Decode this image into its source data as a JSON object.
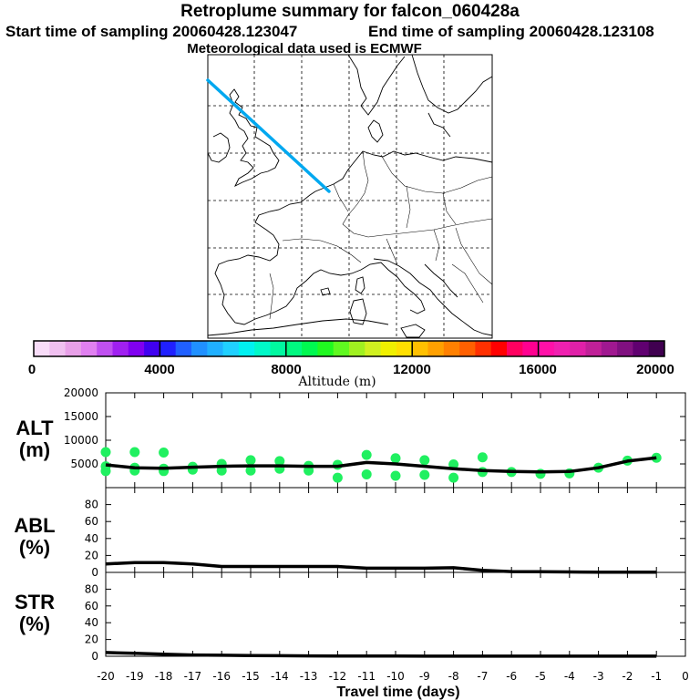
{
  "header": {
    "title": "Retroplume summary for falcon_060428a",
    "start_sampling": "Start time of sampling 20060428.123047",
    "end_sampling": "End time of sampling 20060428.123108",
    "meteo": "Meteorological data used is ECMWF"
  },
  "colorbar": {
    "label": "Altitude (m)",
    "ticks": [
      "0",
      "4000",
      "8000",
      "12000",
      "16000",
      "20000"
    ],
    "colors": [
      "#f8dcf8",
      "#f0c0f0",
      "#e8a0e8",
      "#e080f0",
      "#c050f0",
      "#a020f0",
      "#8000f0",
      "#4000f0",
      "#2020ff",
      "#2060ff",
      "#2090ff",
      "#20b0ff",
      "#20d0ff",
      "#00f0f0",
      "#00f8c8",
      "#00f8a0",
      "#00f880",
      "#00f850",
      "#20f820",
      "#60f820",
      "#a0f020",
      "#d0f020",
      "#f0f000",
      "#ffe000",
      "#ffc000",
      "#ffa000",
      "#ff8000",
      "#ff6000",
      "#ff3000",
      "#ff0000",
      "#ff0060",
      "#ff0090",
      "#ff10a8",
      "#f020b0",
      "#e020a8",
      "#c02098",
      "#a01890",
      "#801080",
      "#600070",
      "#400050"
    ]
  },
  "map": {
    "trajectory_color": "#00a8f0"
  },
  "chart_data": [
    {
      "type": "scatter",
      "panel": "ALT",
      "ylabel": "ALT\n(m)",
      "ylabel_lines": [
        "ALT",
        "(m)"
      ],
      "ylim": [
        0,
        20000
      ],
      "yticks": [
        5000,
        10000,
        15000,
        20000
      ],
      "ytick_labels": [
        "5000",
        "10000",
        "15000",
        "20000"
      ],
      "xlim": [
        -20,
        0
      ],
      "line": {
        "x": [
          -20,
          -19,
          -18,
          -17,
          -16,
          -15,
          -14,
          -13,
          -12,
          -11,
          -10,
          -9,
          -8,
          -7,
          -6,
          -5,
          -4,
          -3,
          -2,
          -1
        ],
        "y": [
          4800,
          4200,
          4100,
          4300,
          4500,
          4600,
          4600,
          4500,
          4500,
          5300,
          5000,
          4500,
          4000,
          3600,
          3400,
          3300,
          3400,
          4200,
          5600,
          6300
        ]
      },
      "points": [
        {
          "x": -20,
          "y": 4500
        },
        {
          "x": -20,
          "y": 3500
        },
        {
          "x": -20,
          "y": 7500
        },
        {
          "x": -19,
          "y": 4200
        },
        {
          "x": -19,
          "y": 3600
        },
        {
          "x": -19,
          "y": 7500
        },
        {
          "x": -18,
          "y": 4000
        },
        {
          "x": -18,
          "y": 3500
        },
        {
          "x": -18,
          "y": 7400
        },
        {
          "x": -17,
          "y": 4400
        },
        {
          "x": -17,
          "y": 3800
        },
        {
          "x": -16,
          "y": 5000
        },
        {
          "x": -16,
          "y": 3600
        },
        {
          "x": -15,
          "y": 5800
        },
        {
          "x": -15,
          "y": 3600
        },
        {
          "x": -14,
          "y": 5600
        },
        {
          "x": -14,
          "y": 4000
        },
        {
          "x": -13,
          "y": 4600
        },
        {
          "x": -13,
          "y": 3600
        },
        {
          "x": -12,
          "y": 4800
        },
        {
          "x": -12,
          "y": 2100
        },
        {
          "x": -11,
          "y": 6900
        },
        {
          "x": -11,
          "y": 2800
        },
        {
          "x": -10,
          "y": 6200
        },
        {
          "x": -10,
          "y": 2500
        },
        {
          "x": -9,
          "y": 5800
        },
        {
          "x": -9,
          "y": 2700
        },
        {
          "x": -8,
          "y": 4900
        },
        {
          "x": -8,
          "y": 2100
        },
        {
          "x": -7,
          "y": 3300
        },
        {
          "x": -7,
          "y": 6400
        },
        {
          "x": -6,
          "y": 3300
        },
        {
          "x": -5,
          "y": 2900
        },
        {
          "x": -4,
          "y": 3000
        },
        {
          "x": -3,
          "y": 4200
        },
        {
          "x": -2,
          "y": 5700
        },
        {
          "x": -1,
          "y": 6300
        }
      ]
    },
    {
      "type": "line",
      "panel": "ABL",
      "ylabel": "ABL\n(%)",
      "ylabel_lines": [
        "ABL",
        "(%)"
      ],
      "ylim": [
        0,
        100
      ],
      "yticks": [
        0,
        20,
        40,
        60,
        80
      ],
      "ytick_labels": [
        "0",
        "20",
        "40",
        "60",
        "80"
      ],
      "xlim": [
        -20,
        0
      ],
      "x": [
        -20,
        -19,
        -18,
        -17,
        -16,
        -15,
        -14,
        -13,
        -12,
        -11,
        -10,
        -9,
        -8,
        -7,
        -6,
        -5,
        -4,
        -3,
        -2,
        -1
      ],
      "y": [
        10,
        11.5,
        11.5,
        10,
        7,
        7,
        7,
        7,
        7,
        5,
        5,
        5,
        5.5,
        2.5,
        1,
        0.8,
        0.5,
        0.3,
        0.2,
        0.2
      ]
    },
    {
      "type": "line",
      "panel": "STR",
      "ylabel": "STR\n(%)",
      "ylabel_lines": [
        "STR",
        "(%)"
      ],
      "ylim": [
        0,
        100
      ],
      "yticks": [
        0,
        20,
        40,
        60,
        80
      ],
      "ytick_labels": [
        "0",
        "20",
        "40",
        "60",
        "80"
      ],
      "xlim": [
        -20,
        0
      ],
      "xticks": [
        -20,
        -19,
        -18,
        -17,
        -16,
        -15,
        -14,
        -13,
        -12,
        -11,
        -10,
        -9,
        -8,
        -7,
        -6,
        -5,
        -4,
        -3,
        -2,
        -1,
        0
      ],
      "xtick_labels": [
        "-20",
        "-19",
        "-18",
        "-17",
        "-16",
        "-15",
        "-14",
        "-13",
        "-12",
        "-11",
        "-10",
        "-9",
        "-8",
        "-7",
        "-6",
        "-5",
        "-4",
        "-3",
        "-2",
        "-1",
        "0"
      ],
      "xlabel": "Travel time (days)",
      "x": [
        -20,
        -19,
        -18,
        -17,
        -16,
        -15,
        -14,
        -13,
        -12,
        -11,
        -10,
        -9,
        -8,
        -7,
        -6,
        -5,
        -4,
        -3,
        -2,
        -1
      ],
      "y": [
        4.5,
        3.5,
        2.5,
        1.5,
        1.2,
        0.8,
        0.6,
        0.4,
        0.3,
        0.2,
        0.2,
        0.1,
        0.1,
        0.1,
        0.1,
        0.1,
        0.1,
        0.1,
        0.1,
        0.1
      ]
    }
  ]
}
